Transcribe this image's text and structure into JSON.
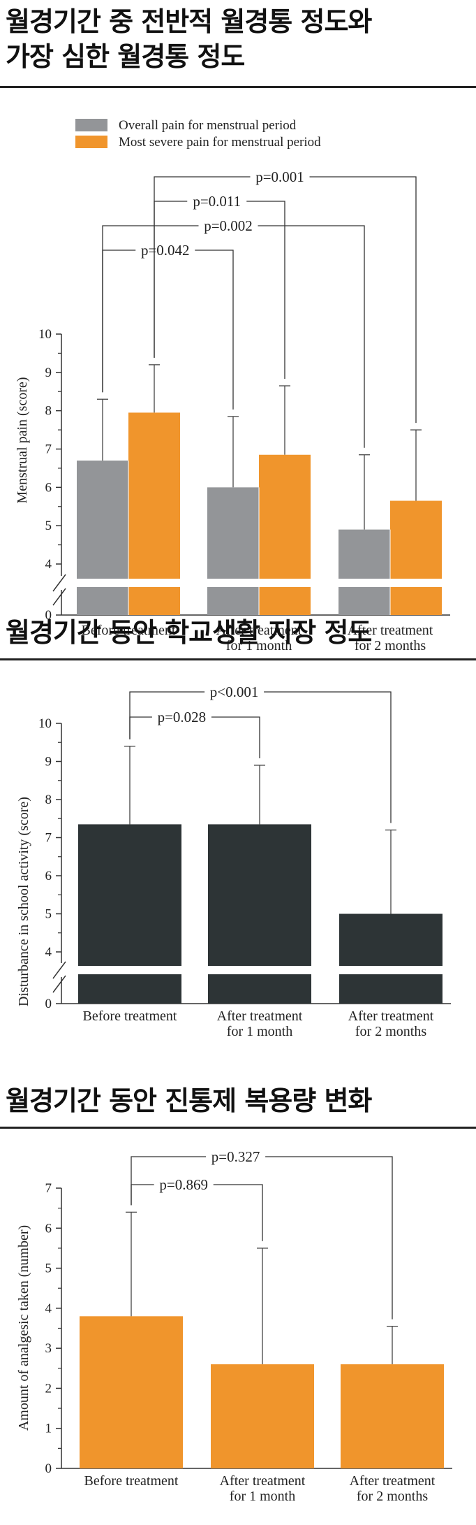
{
  "sections": [
    {
      "title_lines": [
        "월경기간 중 전반적 월경통 정도와",
        "가장 심한 월경통 정도"
      ]
    },
    {
      "title_lines": [
        "월경기간 동안 학교생활 지장 정도"
      ]
    },
    {
      "title_lines": [
        "월경기간 동안 진통제 복용량 변화"
      ]
    }
  ],
  "chart_data": [
    {
      "type": "bar",
      "categories": [
        [
          "Before treatment"
        ],
        [
          "After treatment",
          "for 1 month"
        ],
        [
          "After treatment",
          "for 2 months"
        ]
      ],
      "series": [
        {
          "name": "Overall pain for menstrual period",
          "color": "#939598",
          "values": [
            6.7,
            6.0,
            4.9
          ],
          "error_upper": [
            8.3,
            7.85,
            6.85
          ]
        },
        {
          "name": "Most severe pain for menstrual period",
          "color": "#f0952c",
          "values": [
            7.95,
            6.85,
            5.65
          ],
          "error_upper": [
            9.2,
            8.65,
            7.5
          ]
        }
      ],
      "ylabel": "Menstrual pain (score)",
      "yticks": [
        "0",
        "4",
        "5",
        "6",
        "7",
        "8",
        "9",
        "10"
      ],
      "ylim": [
        0,
        10
      ],
      "axis_break": true,
      "legend": "top-left",
      "annotations": [
        {
          "text": "p=0.001",
          "from": "Before treatment / Most severe",
          "to": "After treatment for 2 months / Most severe"
        },
        {
          "text": "p=0.011",
          "from": "Before treatment / Most severe",
          "to": "After treatment for 1 month / Most severe"
        },
        {
          "text": "p=0.002",
          "from": "Before treatment / Overall",
          "to": "After treatment for 2 months / Overall"
        },
        {
          "text": "p=0.042",
          "from": "Before treatment / Overall",
          "to": "After treatment for 1 month / Overall"
        }
      ]
    },
    {
      "type": "bar",
      "categories": [
        [
          "Before treatment"
        ],
        [
          "After treatment",
          "for 1 month"
        ],
        [
          "After treatment",
          "for 2 months"
        ]
      ],
      "series": [
        {
          "color": "#2d3436",
          "values": [
            7.35,
            7.35,
            5.0
          ],
          "error_upper": [
            9.4,
            8.9,
            7.2
          ]
        }
      ],
      "ylabel": "Disturbance in school activity (score)",
      "yticks": [
        "0",
        "4",
        "5",
        "6",
        "7",
        "8",
        "9",
        "10"
      ],
      "ylim": [
        0,
        10
      ],
      "axis_break": true,
      "annotations": [
        {
          "text": "p<0.001",
          "from": "Before treatment",
          "to": "After treatment for 2 months"
        },
        {
          "text": "p=0.028",
          "from": "Before treatment",
          "to": "After treatment for 1 month"
        }
      ]
    },
    {
      "type": "bar",
      "categories": [
        [
          "Before treatment"
        ],
        [
          "After treatment",
          "for 1 month"
        ],
        [
          "After treatment",
          "for 2 months"
        ]
      ],
      "series": [
        {
          "color": "#f0952c",
          "values": [
            3.8,
            2.6,
            2.6
          ],
          "error_upper": [
            6.4,
            5.5,
            3.55
          ]
        }
      ],
      "ylabel": "Amount of analgesic taken (number)",
      "yticks": [
        "0",
        "1",
        "2",
        "3",
        "4",
        "5",
        "6",
        "7"
      ],
      "ylim": [
        0,
        7
      ],
      "axis_break": false,
      "annotations": [
        {
          "text": "p=0.327",
          "from": "Before treatment",
          "to": "After treatment for 2 months"
        },
        {
          "text": "p=0.869",
          "from": "Before treatment",
          "to": "After treatment for 1 month"
        }
      ]
    }
  ]
}
